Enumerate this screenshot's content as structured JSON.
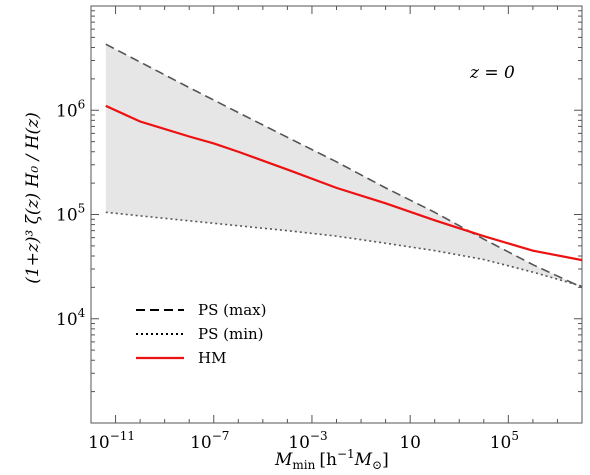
{
  "chart_data": {
    "type": "line",
    "x_scale": "log",
    "y_scale": "log",
    "xlim": [
      1e-12,
      100000000.0
    ],
    "ylim": [
      1000.0,
      10000000.0
    ],
    "xlabel_main": "M",
    "xlabel_sub": "min",
    "xlabel_units_open": "[h",
    "xlabel_units_exp": "−1",
    "xlabel_units_mid": "M",
    "xlabel_units_sun": "⊙",
    "xlabel_units_close": "]",
    "ylabel": "(1+z)³ ζ(z) H₀ / H(z)",
    "annotation": "z = 0",
    "x_ticks": [
      {
        "value": 1e-11,
        "base": "10",
        "exp": "−11"
      },
      {
        "value": 1e-07,
        "base": "10",
        "exp": "−7"
      },
      {
        "value": 0.001,
        "base": "10",
        "exp": "−3"
      },
      {
        "value": 10,
        "base": "10",
        "exp": ""
      },
      {
        "value": 100000.0,
        "base": "10",
        "exp": "5"
      }
    ],
    "y_ticks": [
      {
        "value": 10000.0,
        "base": "10",
        "exp": "4"
      },
      {
        "value": 100000.0,
        "base": "10",
        "exp": "5"
      },
      {
        "value": 1000000.0,
        "base": "10",
        "exp": "6"
      }
    ],
    "series": [
      {
        "name": "PS (max)",
        "style": "dashed",
        "color": "#555555",
        "x": [
          4e-12,
          1e-10,
          1e-08,
          1e-06,
          0.0001,
          0.01,
          1,
          100,
          10000.0,
          1000000.0,
          100000000.0
        ],
        "y": [
          4300000,
          2900000,
          1650000,
          950000,
          550000,
          320000,
          180000,
          105000,
          58000,
          33000,
          20000
        ]
      },
      {
        "name": "PS (min)",
        "style": "dotted",
        "color": "#555555",
        "x": [
          4e-12,
          1e-10,
          1e-08,
          1e-06,
          0.0001,
          0.01,
          1,
          100,
          10000.0,
          1000000.0,
          100000000.0
        ],
        "y": [
          105000,
          97000,
          87000,
          78000,
          70000,
          62000,
          53000,
          45000,
          37000,
          28000,
          20500
        ]
      },
      {
        "name": "HM",
        "style": "solid",
        "color": "#ee1111",
        "x": [
          4e-12,
          1e-10,
          1e-08,
          1e-07,
          1e-06,
          0.0001,
          0.01,
          1,
          100,
          10000.0,
          1000000.0,
          100000000.0
        ],
        "y": [
          1100000,
          780000,
          560000,
          480000,
          400000,
          270000,
          180000,
          128000,
          88000,
          62000,
          45000,
          36500
        ]
      }
    ],
    "band": {
      "between": [
        "PS (max)",
        "PS (min)"
      ],
      "color": "#e6e6e6"
    },
    "legend": {
      "placement": "bottom-left"
    }
  }
}
